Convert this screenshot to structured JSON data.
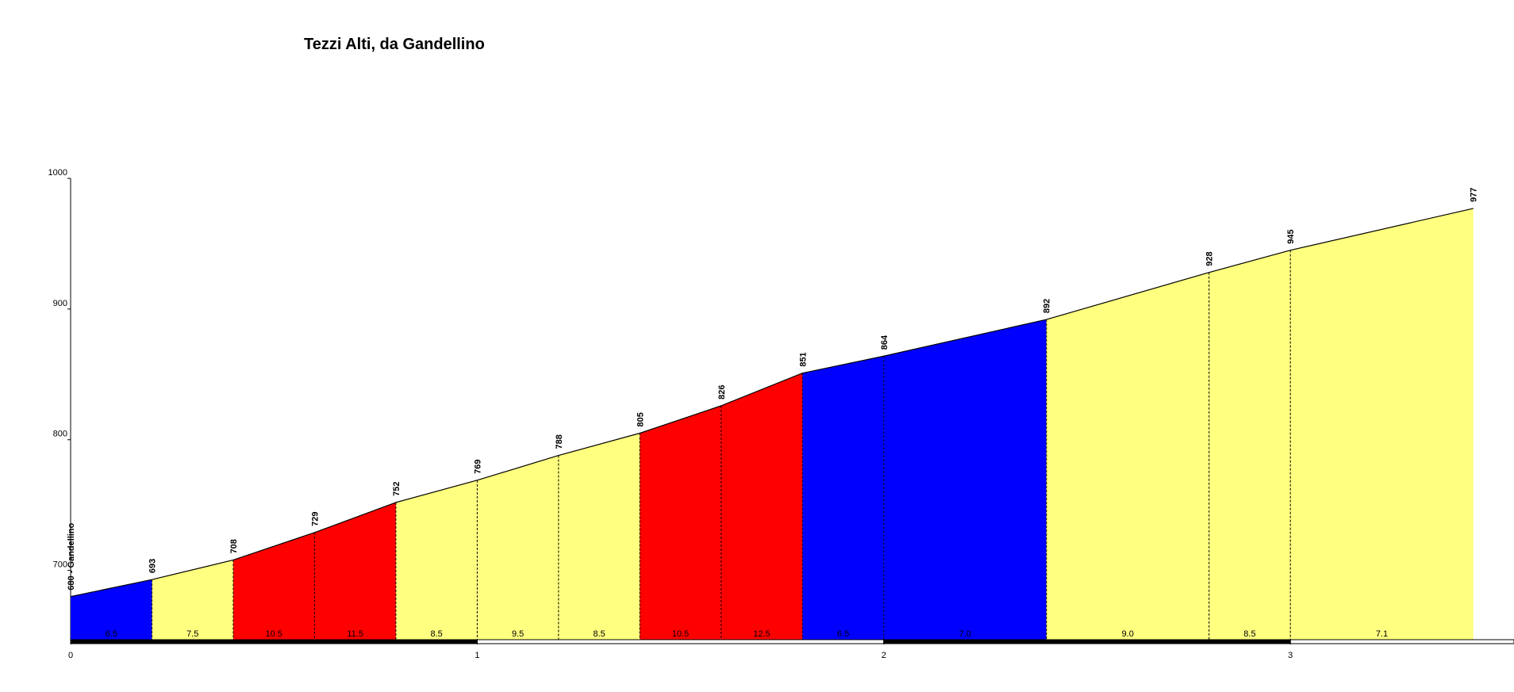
{
  "chart_data": {
    "type": "elevation-profile",
    "title": "Tezzi Alti, da Gandellino",
    "x": [
      0,
      0.2,
      0.4,
      0.6,
      0.8,
      1.0,
      1.2,
      1.4,
      1.6,
      1.8,
      2.0,
      2.4,
      2.8,
      3.0,
      3.45
    ],
    "series": [
      {
        "values": [
          680,
          693,
          708,
          729,
          752,
          769,
          788,
          805,
          826,
          851,
          864,
          892,
          928,
          945,
          977
        ],
        "value_labels": [
          "680 - Gandellino",
          "693",
          "708",
          "729",
          "752",
          "769",
          "788",
          "805",
          "826",
          "851",
          "864",
          "892",
          "928",
          "945",
          "977"
        ]
      }
    ],
    "segments": {
      "values": [
        6.5,
        7.5,
        10.5,
        11.5,
        8.5,
        9.5,
        8.5,
        10.5,
        12.5,
        6.5,
        7.0,
        9.0,
        8.5,
        7.1
      ],
      "value_labels": [
        "6.5",
        "7.5",
        "10.5",
        "11.5",
        "8.5",
        "9.5",
        "8.5",
        "10.5",
        "12.5",
        "6.5",
        "7.0",
        "9.0",
        "8.5",
        "7.1"
      ],
      "colors": [
        "#0000ff",
        "#ffff80",
        "#ff0000",
        "#ff0000",
        "#ffff80",
        "#ffff80",
        "#ffff80",
        "#ff0000",
        "#ff0000",
        "#0000ff",
        "#0000ff",
        "#ffff80",
        "#ffff80",
        "#ffff80"
      ]
    },
    "xlim": [
      0,
      3.55
    ],
    "xticks": [
      0,
      1,
      2,
      3
    ],
    "ylim": [
      647,
      1000
    ],
    "yticks": [
      700,
      800,
      900,
      1000
    ]
  }
}
